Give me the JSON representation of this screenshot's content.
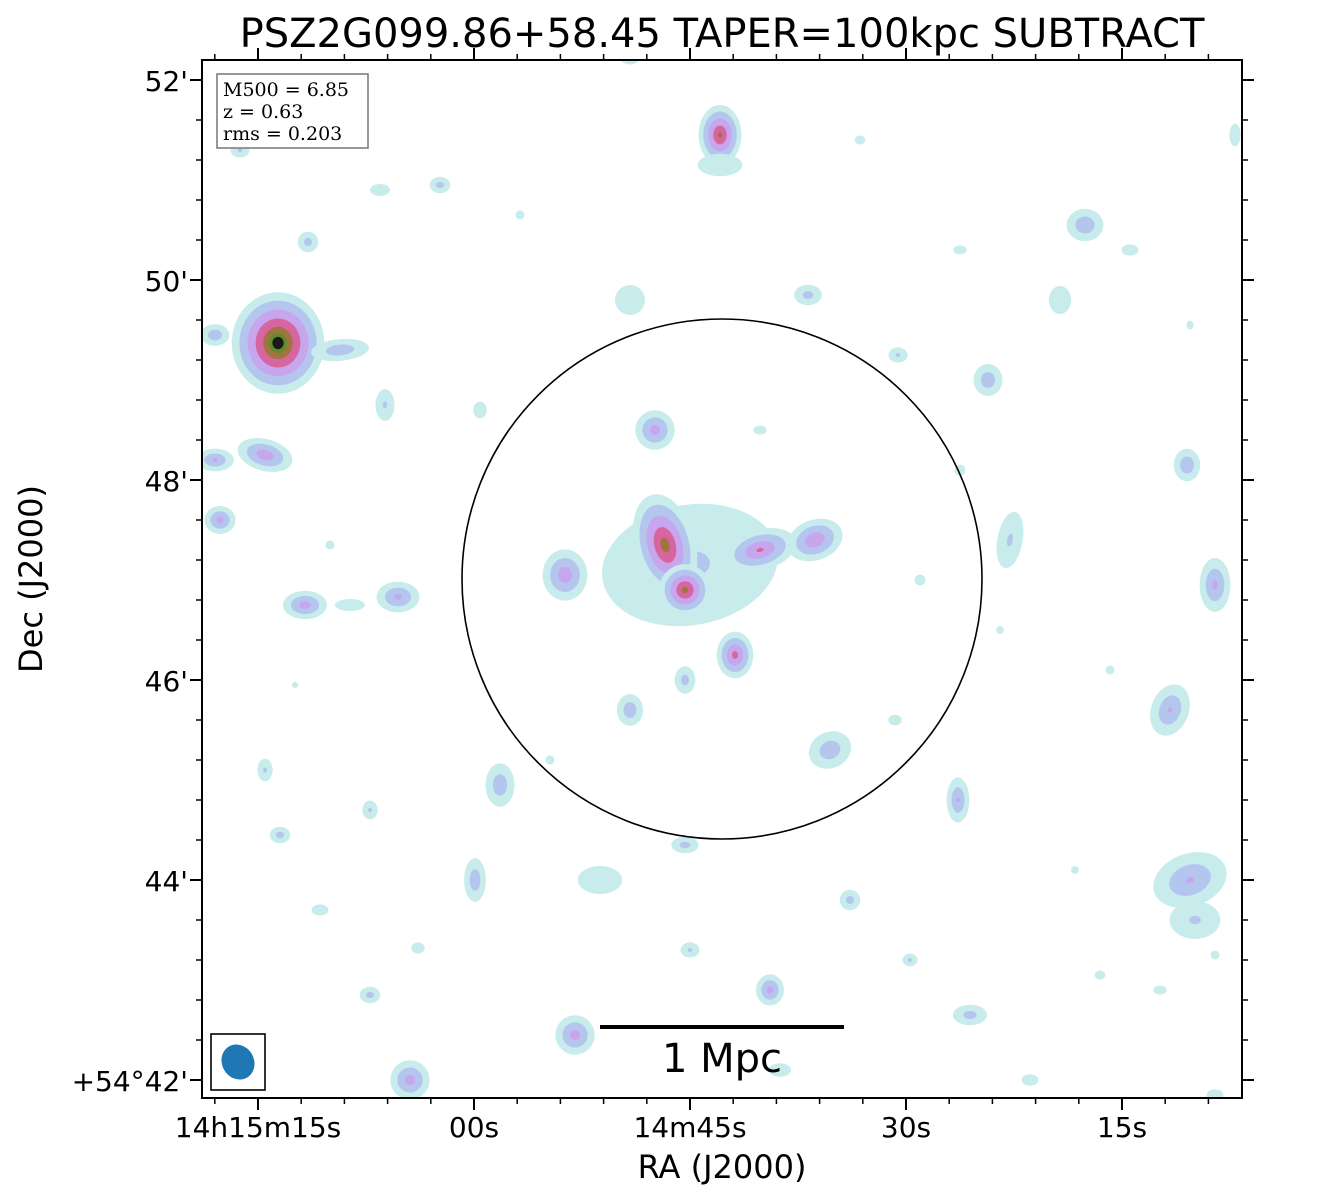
{
  "figure": {
    "title": "PSZ2G099.86+58.45 TAPER=100kpc SUBTRACT",
    "info_box": {
      "lines": [
        "M500 = 6.85",
        "z = 0.63",
        "rms = 0.203"
      ]
    },
    "scale_bar": {
      "label": "1 Mpc"
    },
    "colormap": [
      "#ffffff",
      "#c8ecec",
      "#b4c6ee",
      "#c7a6ee",
      "#d7659f",
      "#a0743f",
      "#5f8c2f",
      "#1a1a1a"
    ],
    "beam_color": "#1f77b4",
    "aperture_color": "#000000"
  },
  "chart_data": {
    "type": "heatmap",
    "title": "PSZ2G099.86+58.45 TAPER=100kpc SUBTRACT",
    "xlabel": "RA (J2000)",
    "ylabel": "Dec (J2000)",
    "x_tick_labels": [
      "14h15m15s",
      "00s",
      "14m45s",
      "30s",
      "15s"
    ],
    "y_tick_labels": [
      "52'",
      "50'",
      "48'",
      "46'",
      "44'",
      "+54°42'"
    ],
    "grid": false,
    "legend": "none",
    "colorbar": "none",
    "annotations": {
      "info_box_position": "top-left",
      "beam_position": "bottom-left",
      "scale_bar_position": "bottom-center",
      "aperture": "circle centered on cluster",
      "bright_source_position": "upper-left"
    }
  }
}
